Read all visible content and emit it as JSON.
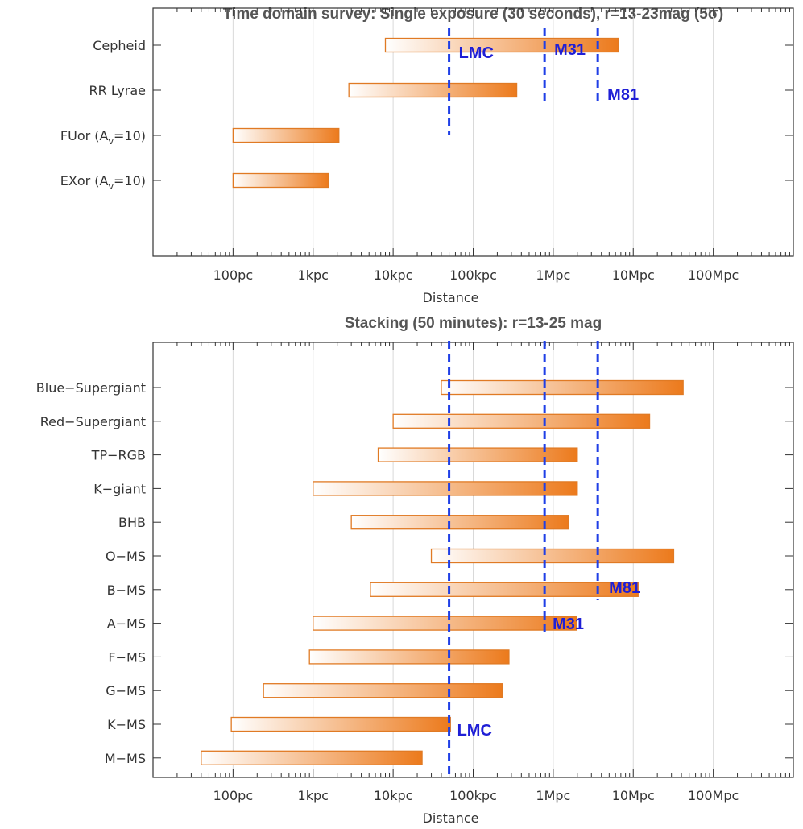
{
  "colors": {
    "bar_start": "#ffffff",
    "bar_end": "#ec7a1c",
    "bar_edge": "#e07a24",
    "marker": "#1f3fe6",
    "marker_text": "#1f1fd6",
    "grid": "#d9d9d9",
    "frame": "#333333",
    "title": "#555555"
  },
  "chart_data": [
    {
      "type": "bar",
      "orientation": "horizontal-range",
      "title": "Time domain survey:  Single exposure (30 seconds),  r=13-23mag (5σ)",
      "xlabel": "Distance",
      "ylabel": "",
      "xscale": "log",
      "xlim_pc": [
        10,
        1000000000
      ],
      "grid": true,
      "xticks": [
        {
          "value": 100,
          "label": "100pc"
        },
        {
          "value": 1000,
          "label": "1kpc"
        },
        {
          "value": 10000,
          "label": "10kpc"
        },
        {
          "value": 100000,
          "label": "100kpc"
        },
        {
          "value": 1000000,
          "label": "1Mpc"
        },
        {
          "value": 10000000,
          "label": "10Mpc"
        },
        {
          "value": 100000000,
          "label": "100Mpc"
        }
      ],
      "categories": [
        {
          "label": "Cepheid",
          "min_pc": 8000,
          "max_pc": 6500000
        },
        {
          "label": "RR Lyrae",
          "min_pc": 2800,
          "max_pc": 350000
        },
        {
          "label": "FUor (A",
          "sub": "v",
          "label_tail": "=10)",
          "min_pc": 100,
          "max_pc": 2100
        },
        {
          "label": "EXor (A",
          "sub": "v",
          "label_tail": "=10)",
          "min_pc": 100,
          "max_pc": 1550
        }
      ],
      "markers": [
        {
          "name": "LMC",
          "value_pc": 50000,
          "label": "LMC",
          "label_side": "right",
          "label_pos": "top"
        },
        {
          "name": "M31",
          "value_pc": 780000,
          "label": "M31",
          "label_side": "right",
          "label_pos": "top"
        },
        {
          "name": "M81",
          "value_pc": 3600000,
          "label": "M81",
          "label_side": "right",
          "label_pos": "bottom"
        }
      ]
    },
    {
      "type": "bar",
      "orientation": "horizontal-range",
      "title": "Stacking (50 minutes):   r=13-25 mag",
      "xlabel": "Distance",
      "ylabel": "",
      "xscale": "log",
      "xlim_pc": [
        10,
        1000000000
      ],
      "grid": true,
      "xticks": [
        {
          "value": 100,
          "label": "100pc"
        },
        {
          "value": 1000,
          "label": "1kpc"
        },
        {
          "value": 10000,
          "label": "10kpc"
        },
        {
          "value": 100000,
          "label": "100kpc"
        },
        {
          "value": 1000000,
          "label": "1Mpc"
        },
        {
          "value": 10000000,
          "label": "10Mpc"
        },
        {
          "value": 100000000,
          "label": "100Mpc"
        }
      ],
      "categories": [
        {
          "label": "Blue−Supergiant",
          "min_pc": 40000,
          "max_pc": 42000000
        },
        {
          "label": "Red−Supergiant",
          "min_pc": 10000,
          "max_pc": 16000000
        },
        {
          "label": "TP−RGB",
          "min_pc": 6500,
          "max_pc": 2000000
        },
        {
          "label": "K−giant",
          "min_pc": 1000,
          "max_pc": 2000000
        },
        {
          "label": "BHB",
          "min_pc": 3000,
          "max_pc": 1550000
        },
        {
          "label": "O−MS",
          "min_pc": 30000,
          "max_pc": 32000000
        },
        {
          "label": "B−MS",
          "min_pc": 5200,
          "max_pc": 11500000
        },
        {
          "label": "A−MS",
          "min_pc": 1000,
          "max_pc": 1950000
        },
        {
          "label": "F−MS",
          "min_pc": 900,
          "max_pc": 280000
        },
        {
          "label": "G−MS",
          "min_pc": 240,
          "max_pc": 230000
        },
        {
          "label": "K−MS",
          "min_pc": 95,
          "max_pc": 52000
        },
        {
          "label": "M−MS",
          "min_pc": 40,
          "max_pc": 23000
        }
      ],
      "markers": [
        {
          "name": "LMC",
          "value_pc": 50000,
          "label": "LMC",
          "label_side": "right",
          "label_pos": "bottom"
        },
        {
          "name": "M31",
          "value_pc": 780000,
          "label": "M31",
          "label_side": "right",
          "label_pos": "bottom"
        },
        {
          "name": "M81",
          "value_pc": 3600000,
          "label": "M81",
          "label_side": "right",
          "label_pos": "lower"
        }
      ]
    }
  ]
}
